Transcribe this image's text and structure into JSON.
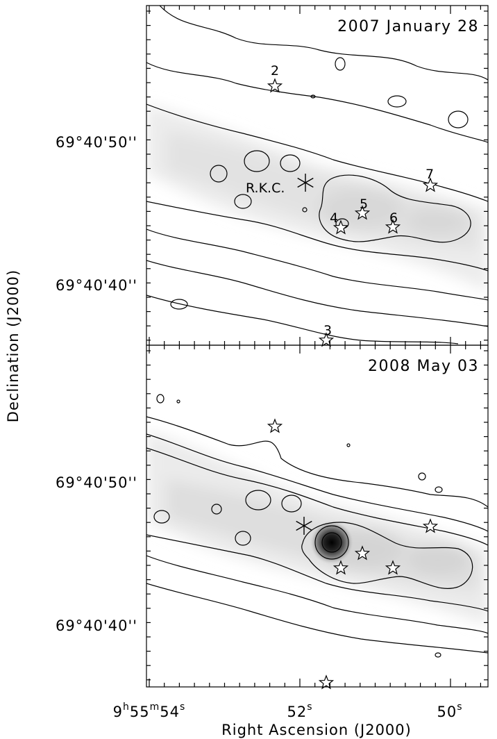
{
  "chart_data": {
    "type": "contour-map",
    "xlabel": "Right Ascension (J2000)",
    "ylabel": "Declination (J2000)",
    "x_tick_labels": [
      {
        "h": "9",
        "m": "55",
        "s": "54"
      },
      {
        "s": "52"
      },
      {
        "s": "50"
      }
    ],
    "y_tick_labels": [
      "69°40'50''",
      "69°40'40''"
    ],
    "panels": [
      {
        "title": "2007 January 28",
        "sources": [
          {
            "id": "2",
            "label": "2",
            "marker": "star"
          },
          {
            "id": "RKC",
            "label": "R.K.C.",
            "marker": "asterisk"
          },
          {
            "id": "4",
            "label": "4",
            "marker": "star"
          },
          {
            "id": "5",
            "label": "5",
            "marker": "star"
          },
          {
            "id": "6",
            "label": "6",
            "marker": "star"
          },
          {
            "id": "7",
            "label": "7",
            "marker": "star"
          },
          {
            "id": "3",
            "label": "3",
            "marker": "star"
          }
        ]
      },
      {
        "title": "2008 May 03",
        "sources": [
          {
            "id": "2",
            "label": "",
            "marker": "star"
          },
          {
            "id": "RKC",
            "label": "",
            "marker": "asterisk"
          },
          {
            "id": "4",
            "label": "",
            "marker": "star"
          },
          {
            "id": "5",
            "label": "",
            "marker": "star"
          },
          {
            "id": "6",
            "label": "",
            "marker": "star"
          },
          {
            "id": "7",
            "label": "",
            "marker": "star"
          },
          {
            "id": "3",
            "label": "",
            "marker": "star"
          }
        ]
      }
    ]
  }
}
